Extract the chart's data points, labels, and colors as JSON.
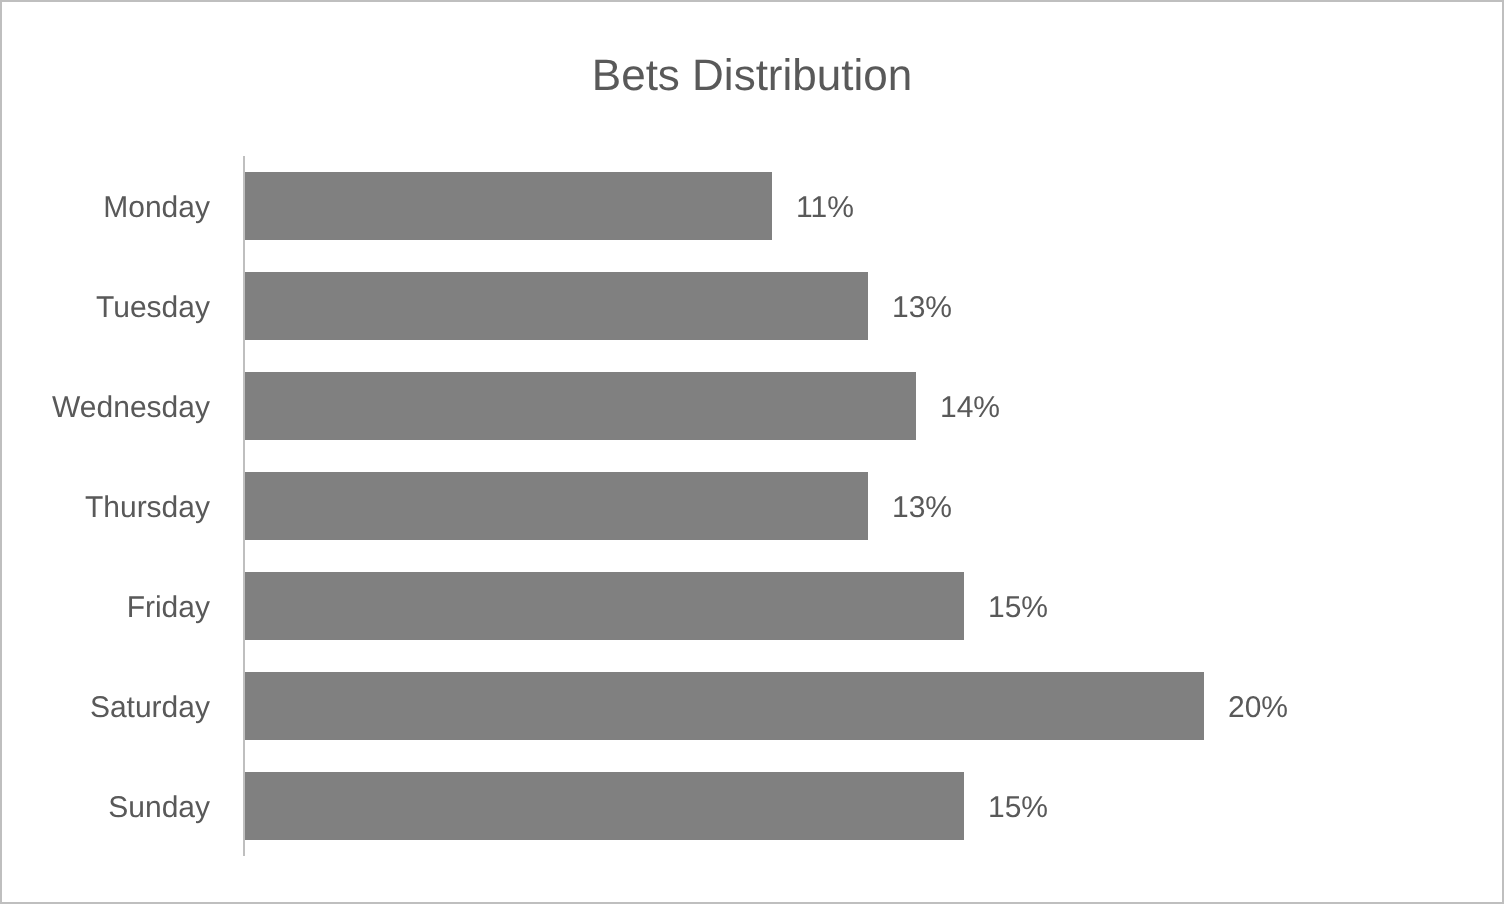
{
  "chart_data": {
    "type": "bar",
    "orientation": "horizontal",
    "title": "Bets Distribution",
    "categories": [
      "Monday",
      "Tuesday",
      "Wednesday",
      "Thursday",
      "Friday",
      "Saturday",
      "Sunday"
    ],
    "values": [
      11,
      13,
      14,
      13,
      15,
      20,
      15
    ],
    "value_labels": [
      "11%",
      "13%",
      "14%",
      "13%",
      "15%",
      "20%",
      "15%"
    ],
    "color": "#808080"
  }
}
